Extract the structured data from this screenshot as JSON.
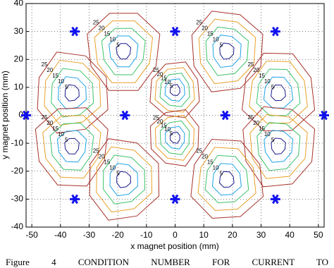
{
  "chart_data": {
    "type": "contour",
    "xlabel": "x magnet position (mm)",
    "ylabel": "y magnet position (mm)",
    "xlim": [
      -52,
      52
    ],
    "ylim": [
      -40,
      40
    ],
    "xticks": [
      -50,
      -40,
      -30,
      -20,
      -10,
      0,
      10,
      20,
      30,
      40,
      50
    ],
    "yticks": [
      -40,
      -30,
      -20,
      -10,
      0,
      10,
      20,
      30,
      40
    ],
    "grid": true,
    "contour_levels": [
      5,
      10,
      15,
      20,
      25
    ],
    "contour_colors": [
      "#1a1a8c",
      "#1fa3e6",
      "#3cc36a",
      "#e8a02a",
      "#a8322a"
    ],
    "cells": {
      "x": [
        -18,
        18,
        -36,
        36,
        0,
        0,
        -36,
        36,
        -18,
        18
      ],
      "y": [
        23,
        23,
        8,
        8,
        9,
        -8,
        -11,
        -11,
        -23,
        -23
      ]
    },
    "magnets": {
      "color": "#1010ee",
      "x": [
        -35,
        0,
        35,
        -52,
        -17.5,
        17.5,
        52,
        -35,
        0,
        35
      ],
      "y": [
        30,
        30,
        30,
        0,
        0,
        0,
        0,
        -30,
        -30,
        -30
      ]
    }
  },
  "caption": "Figure 4 CONDITION NUMBER FOR CURRENT TO"
}
